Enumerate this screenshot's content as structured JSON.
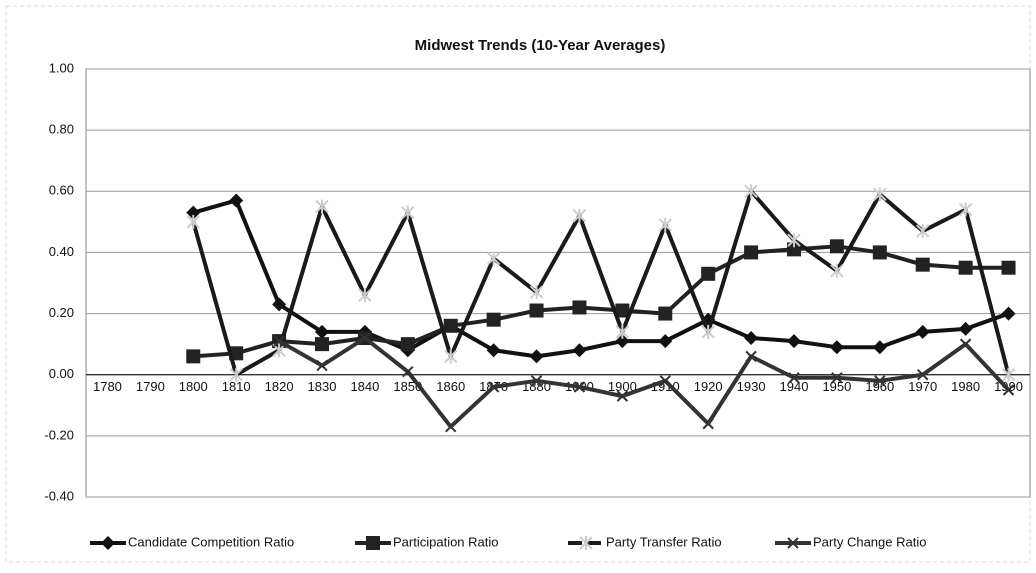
{
  "chart_data": {
    "type": "line",
    "title": "Midwest Trends (10-Year Averages)",
    "categories": [
      "1780",
      "1790",
      "1800",
      "1810",
      "1820",
      "1830",
      "1840",
      "1850",
      "1860",
      "1870",
      "1880",
      "1890",
      "1900",
      "1910",
      "1920",
      "1930",
      "1940",
      "1950",
      "1960",
      "1970",
      "1980",
      "1990"
    ],
    "ylim": [
      -0.4,
      1.0
    ],
    "yticks": [
      {
        "value": -0.4,
        "label": "-0.40"
      },
      {
        "value": -0.2,
        "label": "-0.20"
      },
      {
        "value": 0,
        "label": "0.00"
      },
      {
        "value": 0.2,
        "label": "0.20"
      },
      {
        "value": 0.4,
        "label": "0.40"
      },
      {
        "value": 0.6,
        "label": "0.60"
      },
      {
        "value": 0.8,
        "label": "0.80"
      },
      {
        "value": 1.0,
        "label": "1.00"
      }
    ],
    "grid": true,
    "legend": "bottom",
    "series": [
      {
        "name": "Candidate Competition Ratio",
        "color": "#111111",
        "marker": "diamond",
        "values": [
          null,
          null,
          0.53,
          0.57,
          0.23,
          0.14,
          0.14,
          0.08,
          0.16,
          0.08,
          0.06,
          0.08,
          0.11,
          0.11,
          0.18,
          0.12,
          0.11,
          0.09,
          0.09,
          0.14,
          0.15,
          0.2
        ]
      },
      {
        "name": "Participation Ratio",
        "color": "#222222",
        "marker": "square",
        "values": [
          null,
          null,
          0.06,
          0.07,
          0.11,
          0.1,
          0.12,
          0.1,
          0.16,
          0.18,
          0.21,
          0.22,
          0.21,
          0.2,
          0.33,
          0.4,
          0.41,
          0.42,
          0.4,
          0.36,
          0.35,
          0.35
        ]
      },
      {
        "name": "Party Transfer Ratio",
        "color": "#1a1a1a",
        "marker": "star",
        "dash": true,
        "values": [
          null,
          null,
          0.5,
          0.0,
          0.08,
          0.55,
          0.26,
          0.53,
          0.06,
          0.38,
          0.27,
          0.52,
          0.14,
          0.49,
          0.14,
          0.6,
          0.44,
          0.34,
          0.59,
          0.47,
          0.54,
          0.0
        ]
      },
      {
        "name": "Party Change Ratio",
        "color": "#333333",
        "marker": "x",
        "values": [
          null,
          null,
          null,
          null,
          0.11,
          0.03,
          0.12,
          0.01,
          -0.17,
          -0.04,
          -0.02,
          -0.04,
          -0.07,
          -0.02,
          -0.16,
          0.06,
          -0.01,
          -0.01,
          -0.02,
          0.0,
          0.1,
          -0.05
        ]
      }
    ]
  }
}
